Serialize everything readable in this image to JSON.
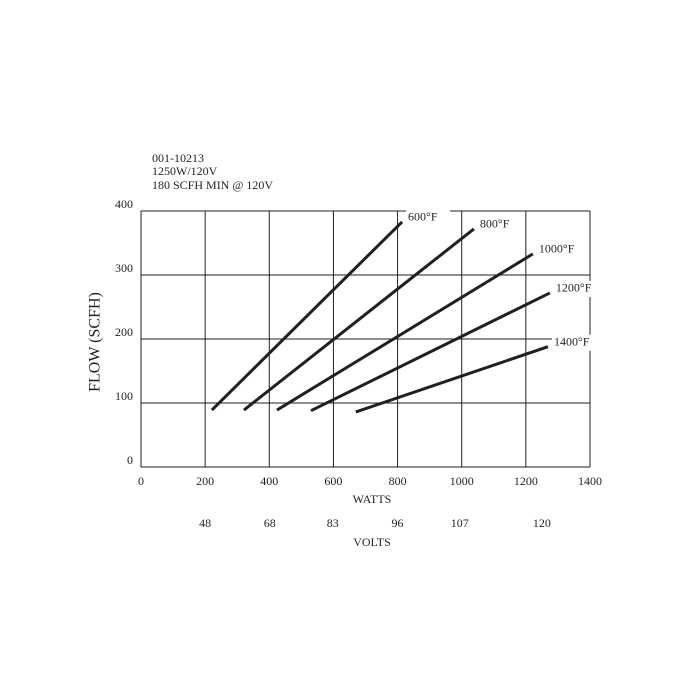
{
  "chart_data": {
    "type": "line",
    "annotations": [
      "001-10213",
      "1250W/120V",
      "180 SCFH MIN @ 120V"
    ],
    "xlabel": "WATTS",
    "ylabel": "FLOW (SCFH)",
    "x2label": "VOLTS",
    "xlim": [
      0,
      1400
    ],
    "xticks": [
      0,
      200,
      400,
      600,
      800,
      1000,
      1200,
      1400
    ],
    "ylim": [
      0,
      400
    ],
    "yticks": [
      0,
      100,
      200,
      300,
      400
    ],
    "x2lim": [
      0,
      127
    ],
    "x2scale": "square",
    "x2ticks": [
      48,
      68,
      83,
      96,
      107,
      120
    ],
    "grid": true,
    "series": [
      {
        "name": "600°F",
        "color": "#231f20",
        "x": [
          221,
          814
        ],
        "values": [
          89,
          383
        ]
      },
      {
        "name": "800°F",
        "color": "#231f20",
        "x": [
          321,
          1038
        ],
        "values": [
          89,
          372
        ]
      },
      {
        "name": "1000°F",
        "color": "#231f20",
        "x": [
          424,
          1222
        ],
        "values": [
          89,
          333
        ]
      },
      {
        "name": "1200°F",
        "color": "#231f20",
        "x": [
          530,
          1275
        ],
        "values": [
          88,
          272
        ]
      },
      {
        "name": "1400°F",
        "color": "#231f20",
        "x": [
          670,
          1269
        ],
        "values": [
          86,
          188
        ]
      }
    ]
  }
}
